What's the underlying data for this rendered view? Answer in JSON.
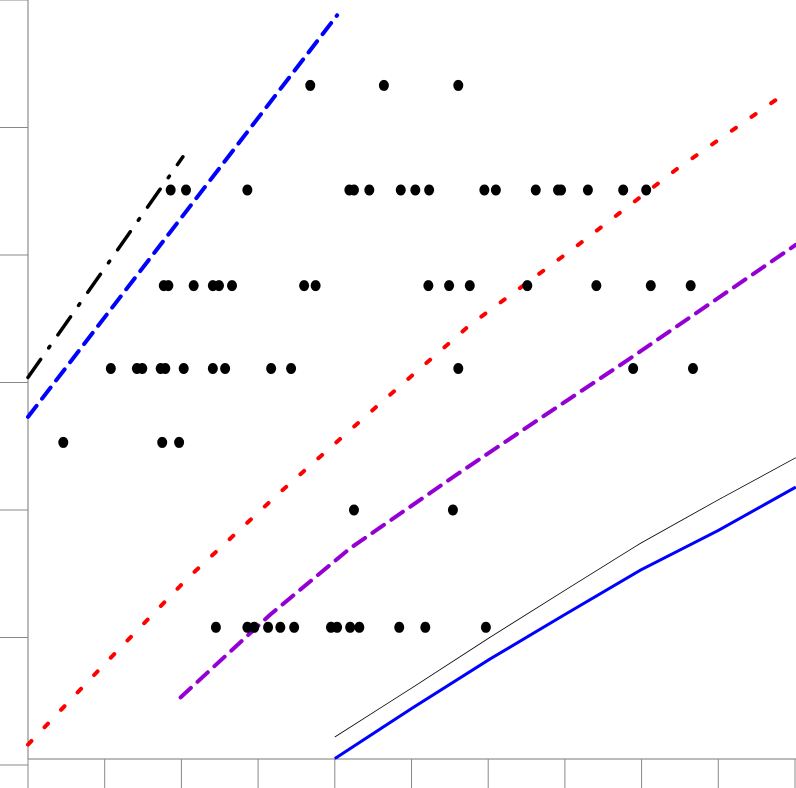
{
  "chart_data": {
    "type": "line",
    "title": "",
    "xlabel": "",
    "ylabel": "",
    "xlim": [
      0,
      10
    ],
    "ylim": [
      0,
      6
    ],
    "xticks": [
      0,
      1,
      2,
      3,
      4,
      5,
      6,
      7,
      8,
      9,
      10
    ],
    "yticks": [
      0,
      1,
      2,
      3,
      4,
      5,
      6
    ],
    "tick_labels_shown": false,
    "grid": false,
    "legend": "none",
    "series": [
      {
        "kind": "line",
        "style": "dash-dot",
        "color": "#000000",
        "points": [
          [
            0,
            3.04
          ],
          [
            2.02,
            4.77
          ]
        ]
      },
      {
        "kind": "line",
        "style": "dashed",
        "color": "#0000ff",
        "points": [
          [
            0,
            2.73
          ],
          [
            4.03,
            5.88
          ]
        ]
      },
      {
        "kind": "line",
        "style": "dotted",
        "color": "#ff0000",
        "points": [
          [
            0,
            0.16
          ],
          [
            0.98,
            0.78
          ],
          [
            2.09,
            1.47
          ],
          [
            3.27,
            2.13
          ],
          [
            4.56,
            2.82
          ],
          [
            5.76,
            3.45
          ],
          [
            7.11,
            4.05
          ],
          [
            8.45,
            4.67
          ],
          [
            9.83,
            5.25
          ]
        ]
      },
      {
        "kind": "line",
        "style": "dashed",
        "color": "#9400d3",
        "points": [
          [
            1.99,
            0.53
          ],
          [
            3.16,
            1.18
          ],
          [
            4.2,
            1.7
          ],
          [
            5.57,
            2.27
          ],
          [
            6.68,
            2.72
          ],
          [
            7.78,
            3.16
          ],
          [
            10.01,
            4.08
          ]
        ]
      },
      {
        "kind": "line",
        "style": "solid",
        "color": "#0000ff",
        "points": [
          [
            4,
            0.05
          ],
          [
            5.02,
            0.45
          ],
          [
            6.02,
            0.83
          ],
          [
            7,
            1.18
          ],
          [
            7.99,
            1.53
          ],
          [
            9,
            1.84
          ],
          [
            10.01,
            2.18
          ]
        ]
      },
      {
        "kind": "line",
        "style": "thin",
        "color": "#000000",
        "points": [
          [
            4,
            0.22
          ],
          [
            5.02,
            0.61
          ],
          [
            6.02,
            1.0
          ],
          [
            7,
            1.37
          ],
          [
            7.99,
            1.74
          ],
          [
            9,
            2.08
          ],
          [
            10.01,
            2.41
          ]
        ]
      },
      {
        "kind": "scatter",
        "color": "#000000",
        "points": [
          [
            3.68,
            5.33
          ],
          [
            4.64,
            5.33
          ],
          [
            5.61,
            5.33
          ],
          [
            1.86,
            4.51
          ],
          [
            2.06,
            4.51
          ],
          [
            2.86,
            4.51
          ],
          [
            4.19,
            4.51
          ],
          [
            4.25,
            4.51
          ],
          [
            4.45,
            4.51
          ],
          [
            4.86,
            4.51
          ],
          [
            5.05,
            4.51
          ],
          [
            5.23,
            4.51
          ],
          [
            5.95,
            4.51
          ],
          [
            6.1,
            4.51
          ],
          [
            6.62,
            4.51
          ],
          [
            6.91,
            4.51
          ],
          [
            6.95,
            4.51
          ],
          [
            7.3,
            4.51
          ],
          [
            7.76,
            4.51
          ],
          [
            8.06,
            4.51
          ],
          [
            1.77,
            3.76
          ],
          [
            1.83,
            3.76
          ],
          [
            2.16,
            3.76
          ],
          [
            2.41,
            3.76
          ],
          [
            2.49,
            3.76
          ],
          [
            2.66,
            3.76
          ],
          [
            3.6,
            3.76
          ],
          [
            3.75,
            3.76
          ],
          [
            5.22,
            3.76
          ],
          [
            5.49,
            3.76
          ],
          [
            5.76,
            3.76
          ],
          [
            6.51,
            3.76
          ],
          [
            7.41,
            3.76
          ],
          [
            8.12,
            3.76
          ],
          [
            8.64,
            3.76
          ],
          [
            1.08,
            3.11
          ],
          [
            1.42,
            3.11
          ],
          [
            1.49,
            3.11
          ],
          [
            1.73,
            3.11
          ],
          [
            1.79,
            3.11
          ],
          [
            2.03,
            3.11
          ],
          [
            2.41,
            3.11
          ],
          [
            2.57,
            3.11
          ],
          [
            3.17,
            3.11
          ],
          [
            3.43,
            3.11
          ],
          [
            5.61,
            3.11
          ],
          [
            7.89,
            3.11
          ],
          [
            8.67,
            3.11
          ],
          [
            0.46,
            2.53
          ],
          [
            1.75,
            2.53
          ],
          [
            1.97,
            2.53
          ],
          [
            4.25,
            2.0
          ],
          [
            5.54,
            2.0
          ],
          [
            2.45,
            1.08
          ],
          [
            2.86,
            1.08
          ],
          [
            2.95,
            1.08
          ],
          [
            3.13,
            1.08
          ],
          [
            3.29,
            1.08
          ],
          [
            3.47,
            1.08
          ],
          [
            3.95,
            1.08
          ],
          [
            4.03,
            1.08
          ],
          [
            4.2,
            1.08
          ],
          [
            4.32,
            1.08
          ],
          [
            4.84,
            1.08
          ],
          [
            5.18,
            1.08
          ],
          [
            5.97,
            1.08
          ]
        ]
      }
    ]
  }
}
